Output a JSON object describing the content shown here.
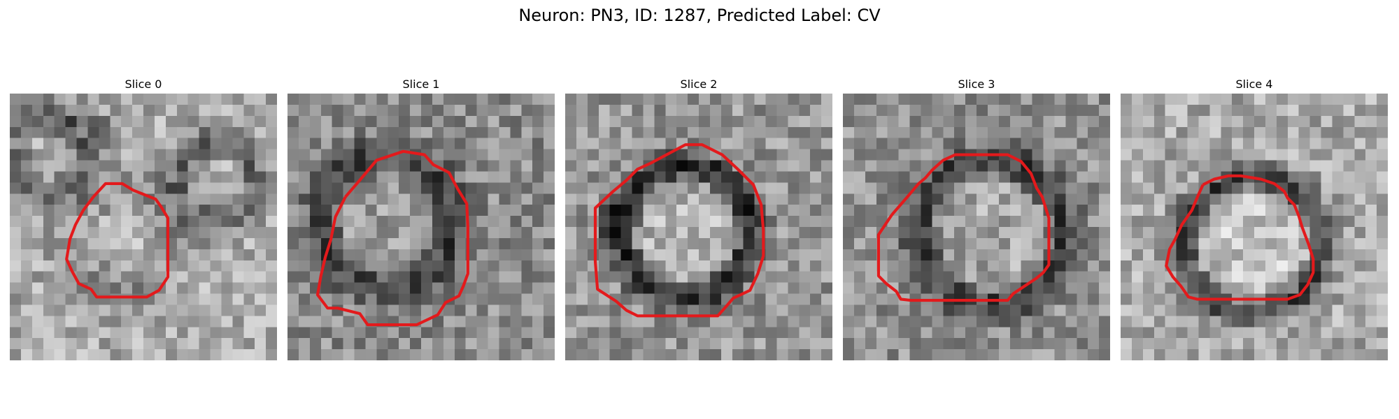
{
  "figure": {
    "title": "Neuron: PN3, ID: 1287, Predicted Label: CV",
    "contour_color": "#e31a1c",
    "colormap": "grayscale"
  },
  "panels": [
    {
      "title": "Slice 0",
      "pixel_seed": 11,
      "rings": [
        {
          "cx": 3.5,
          "cy": 5.5,
          "r": 3.5,
          "w": 1.6,
          "amp": 55
        },
        {
          "cx": 7,
          "cy": 3.5,
          "r": 1.5,
          "w": 1,
          "amp": 30
        },
        {
          "cx": 18.5,
          "cy": 8,
          "r": 3.5,
          "w": 1.4,
          "amp": 70
        },
        {
          "cx": 10,
          "cy": 13,
          "r": 4.5,
          "w": 1.6,
          "amp": 25
        }
      ],
      "contour_nodes": "[[7.5,9.3],[8.6,8.1],[10.1,8.1],[11.1,8.7],[13.1,9.5],[13.6,10.2],[14.2,11.2],[14.2,13.2],[14.2,14.9],[14.2,16.5],[13.4,17.7],[12.3,18.3],[10.0,18.3],[7.8,18.3],[7.3,17.6],[6.2,17.1],[5.6,16.0],[5.1,14.9],[5.4,13.1],[5.9,11.8],[6.6,10.5]]",
      "base": 170
    },
    {
      "title": "Slice 1",
      "pixel_seed": 23,
      "rings": [
        {
          "cx": 8.9,
          "cy": 11.5,
          "r": 6,
          "w": 1.7,
          "amp": 70
        }
      ],
      "contour_nodes": "[[5.2,9.3],[6.4,7.9],[8.0,6.0],[10.4,5.2],[12.3,5.5],[13.1,6.4],[14.5,7.1],[15.3,8.6],[16.1,9.9],[16.2,12.0],[16.2,14.0],[16.2,16.2],[15.8,17.3],[15.4,18.2],[14.2,18.8],[13.5,19.9],[11.6,20.8],[10.0,20.8],[8.8,20.8],[7.2,20.8],[6.5,19.8],[4.5,19.3],[3.6,19.3],[2.7,18.1],[3.0,16.4],[3.4,14.7],[3.9,13.1],[4.3,11.1]]",
      "base": 140
    },
    {
      "title": "Slice 2",
      "pixel_seed": 37,
      "rings": [
        {
          "cx": 10.8,
          "cy": 12.4,
          "r": 5.9,
          "w": 1.3,
          "amp": 110
        },
        {
          "cx": 4.8,
          "cy": 11.6,
          "r": 1.2,
          "w": 0.8,
          "amp": 40
        }
      ],
      "contour_nodes": "[[4.3,8.8],[5.5,7.8],[6.5,6.8],[7.6,6.3],[9.1,5.5],[10.8,4.6],[12.3,4.6],[14.1,5.5],[15.5,6.8],[16.9,8.2],[17.6,10.0],[17.8,12.3],[17.8,14.6],[17.3,16.2],[16.6,17.7],[15.1,18.4],[14.5,19.1],[13.7,20.0],[12.3,20.0],[10.0,20.0],[8.1,20.0],[6.5,20.0],[5.5,19.5],[4.6,18.7],[2.9,17.6],[2.7,15.1],[2.7,12.6],[2.7,10.3]]",
      "base": 150
    },
    {
      "title": "Slice 3",
      "pixel_seed": 53,
      "rings": [
        {
          "cx": 13.3,
          "cy": 12.5,
          "r": 6.6,
          "w": 1.5,
          "amp": 85
        }
      ],
      "contour_nodes": "[[4.4,10.9],[5.7,9.4],[6.8,8.1],[7.4,7.6],[8.0,6.9],[9.0,6.0],[10.1,5.5],[12.5,5.5],[14.8,5.5],[16.0,6.1],[16.9,7.2],[17.4,8.5],[17.9,9.3],[18.5,11.2],[18.5,13.3],[18.5,15.4],[18.0,16.1],[17.4,16.6],[16.5,17.2],[15.3,18.0],[14.8,18.6],[13.8,18.6],[11.8,18.6],[9.9,18.6],[7.9,18.6],[6.1,18.6],[5.2,18.5],[4.8,17.8],[3.9,17.1],[3.2,16.4],[3.2,14.8],[3.2,12.7]]",
      "base": 145
    },
    {
      "title": "Slice 4",
      "pixel_seed": 71,
      "rings": [
        {
          "cx": 11.9,
          "cy": 13.6,
          "r": 6.2,
          "w": 1.3,
          "amp": 100
        }
      ],
      "contour_nodes": "[[7.4,8.2],[8.4,7.7],[9.7,7.4],[10.8,7.4],[12.6,7.7],[13.8,8.1],[14.7,8.8],[15.0,9.4],[15.6,10.0],[16.0,11.0],[16.3,12.0],[16.9,13.6],[17.3,14.9],[17.3,16.1],[16.8,17.2],[16.1,18.1],[15.0,18.5],[13.6,18.5],[11.7,18.5],[9.7,18.5],[8.1,18.5],[6.9,18.5],[6.1,18.3],[5.4,17.3],[4.7,16.5],[4.1,15.5],[4.4,14.0],[4.9,13.1],[5.5,11.8],[6.4,10.5],[6.9,9.3]]",
      "base": 170
    }
  ]
}
